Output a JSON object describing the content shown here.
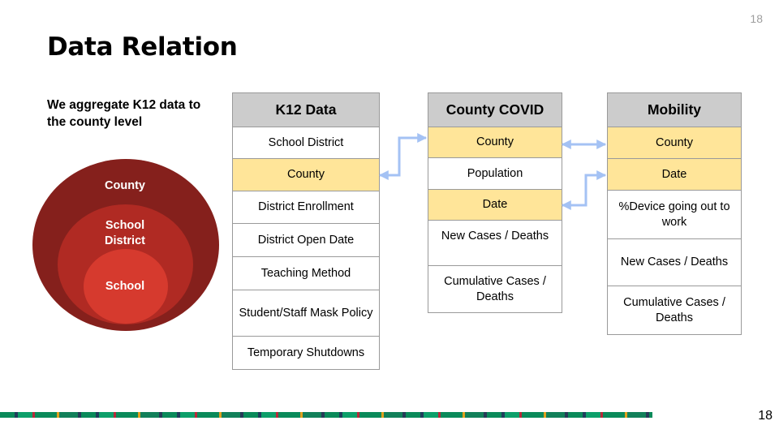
{
  "slide": {
    "title": "Data Relation",
    "page_number": "18",
    "subtitle": "We aggregate K12 data to the county level"
  },
  "venn": {
    "outer": "County",
    "middle": "School District",
    "inner": "School",
    "colors": {
      "outer": "#85201c",
      "middle": "#b02a23",
      "inner": "#d63a2e"
    }
  },
  "tables": {
    "k12": {
      "header": "K12 Data",
      "rows": [
        "School District",
        "County",
        "District Enrollment",
        "District Open Date",
        "Teaching Method",
        "Student/Staff Mask Policy",
        "Temporary Shutdowns"
      ]
    },
    "covid": {
      "header": "County COVID",
      "rows": [
        "County",
        "Population",
        "Date",
        "New Cases / Deaths",
        "Cumulative Cases / Deaths"
      ]
    },
    "mobility": {
      "header": "Mobility",
      "rows": [
        "County",
        "Date",
        "%Device going out to work",
        "New Cases / Deaths",
        "Cumulative Cases / Deaths"
      ]
    }
  },
  "colors": {
    "header": "#cccccc",
    "key_highlight": "#ffe599",
    "arrow": "#a4c2f4"
  }
}
